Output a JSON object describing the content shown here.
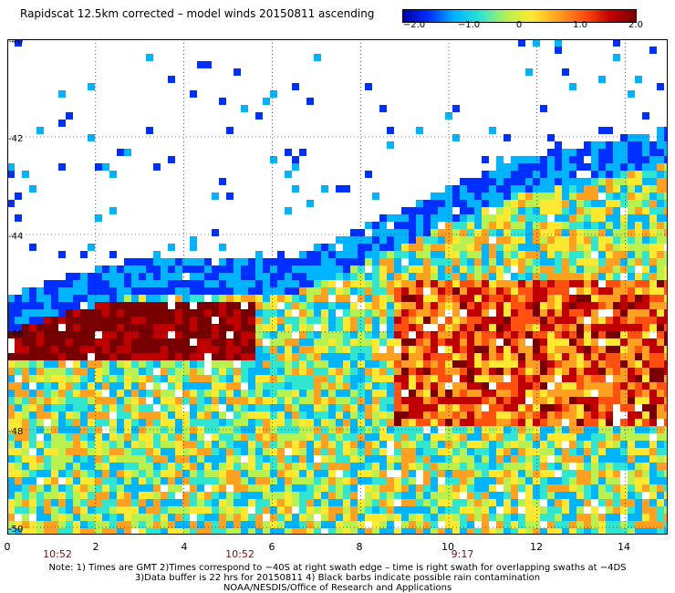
{
  "title": "Rapidscat 12.5km corrected – model winds 20150811 ascending",
  "colorbar": {
    "range": [
      -2.0,
      2.0
    ],
    "ticks": [
      "−2.0",
      "−1.0",
      "0",
      "1.0",
      "2.0"
    ],
    "colors": [
      "#0000a8",
      "#0030ff",
      "#00b4ff",
      "#30e6d0",
      "#b8f050",
      "#ffe830",
      "#ffa020",
      "#ff5010",
      "#c00000",
      "#780000"
    ]
  },
  "map": {
    "y_labels": [
      "-40",
      "-42",
      "-44",
      "-46",
      "-48",
      "-50"
    ],
    "x_labels": [
      "0",
      "2",
      "4",
      "6",
      "8",
      "10",
      "12",
      "14"
    ],
    "time_labels": [
      "10:52",
      "10:52",
      "9:17"
    ],
    "grid": true,
    "colors": {
      "frame": "#000000",
      "grid": "#000000",
      "no_data": "#ffffff",
      "time_label": "#7a1010"
    }
  },
  "notes": [
    "Note: 1) Times are GMT 2)Times correspond to −40S at right swath edge – time is right swath for overlapping swaths at −4DS",
    "3)Data buffer is 22 hrs for 20150811 4) Black barbs indicate possible rain contamination",
    "NOAA/NESDIS/Office of Research and Applications"
  ]
}
